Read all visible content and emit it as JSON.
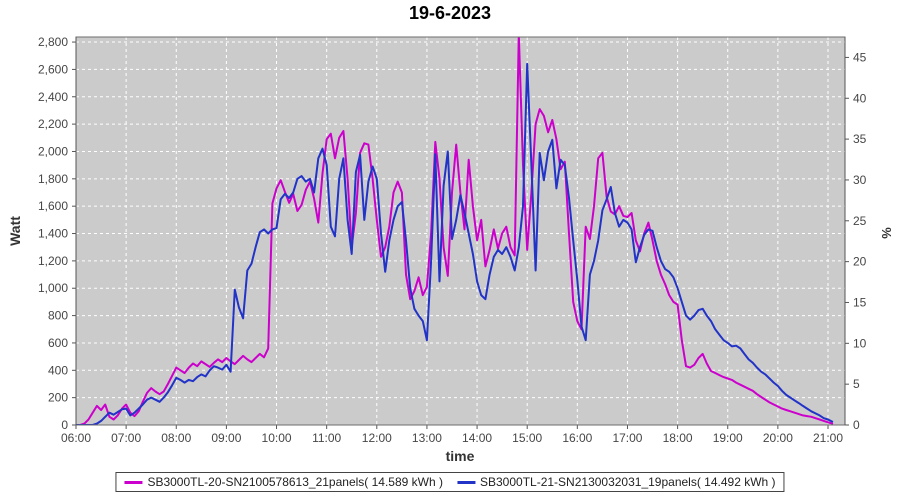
{
  "title": "19-6-2023",
  "chart_data": {
    "type": "line",
    "title": "19-6-2023",
    "plot_bg": "#cbcbcb",
    "grid_color": "#ffffff",
    "legend_position": "bottom-center",
    "x_axis": {
      "label": "time",
      "tick_hours": [
        6,
        7,
        8,
        9,
        10,
        11,
        12,
        13,
        14,
        15,
        16,
        17,
        18,
        19,
        20,
        21
      ],
      "tick_labels": [
        "06:00",
        "07:00",
        "08:00",
        "09:00",
        "10:00",
        "11:00",
        "12:00",
        "13:00",
        "14:00",
        "15:00",
        "16:00",
        "17:00",
        "18:00",
        "19:00",
        "20:00",
        "21:00"
      ]
    },
    "y_axis_left": {
      "label": "Watt",
      "ticks": [
        0,
        200,
        400,
        600,
        800,
        1000,
        1200,
        1400,
        1600,
        1800,
        2000,
        2200,
        2400,
        2600,
        2800
      ],
      "tick_labels": [
        "0",
        "200",
        "400",
        "600",
        "800",
        "1,000",
        "1,200",
        "1,400",
        "1,600",
        "1,800",
        "2,000",
        "2,200",
        "2,400",
        "2,600",
        "2,800"
      ],
      "range": [
        0,
        2837
      ]
    },
    "y_axis_right": {
      "label": "%",
      "ticks": [
        0,
        5,
        10,
        15,
        20,
        25,
        30,
        35,
        40,
        45
      ],
      "tick_labels": [
        "0",
        "5",
        "10",
        "15",
        "20",
        "25",
        "30",
        "35",
        "40",
        "45"
      ],
      "range": [
        0,
        47.5
      ]
    },
    "x_start_hour": 6,
    "x_step_minutes": 5,
    "series": [
      {
        "name": "SB3000TL-20-SN2100578613_21panels( 14.589 kWh )",
        "color": "#cc00cc",
        "unit": "Watt",
        "total_kwh": "14.589",
        "values": [
          0,
          0,
          10,
          40,
          90,
          140,
          110,
          150,
          60,
          40,
          70,
          120,
          150,
          90,
          65,
          100,
          170,
          235,
          270,
          245,
          225,
          245,
          300,
          360,
          420,
          400,
          380,
          420,
          450,
          430,
          465,
          445,
          425,
          455,
          480,
          460,
          490,
          465,
          445,
          475,
          505,
          480,
          460,
          490,
          520,
          495,
          560,
          1620,
          1730,
          1790,
          1705,
          1625,
          1690,
          1565,
          1610,
          1720,
          1780,
          1655,
          1480,
          1840,
          2090,
          2130,
          1950,
          2100,
          2150,
          1800,
          1300,
          1550,
          1990,
          2060,
          2050,
          1800,
          1500,
          1230,
          1300,
          1450,
          1700,
          1780,
          1700,
          1100,
          920,
          980,
          1080,
          950,
          1010,
          1400,
          2070,
          1800,
          1300,
          1090,
          1700,
          2050,
          1700,
          1430,
          1940,
          1600,
          1350,
          1500,
          1160,
          1280,
          1430,
          1290,
          1400,
          1450,
          1300,
          1240,
          2860,
          1900,
          1280,
          1700,
          2200,
          2310,
          2260,
          2140,
          2230,
          2090,
          1870,
          1925,
          1400,
          900,
          760,
          700,
          1450,
          1360,
          1600,
          1950,
          1990,
          1670,
          1560,
          1540,
          1600,
          1530,
          1520,
          1550,
          1350,
          1270,
          1400,
          1480,
          1350,
          1200,
          1100,
          1030,
          950,
          900,
          880,
          620,
          430,
          420,
          440,
          490,
          520,
          450,
          395,
          380,
          365,
          350,
          340,
          330,
          310,
          295,
          280,
          265,
          250,
          225,
          205,
          185,
          165,
          150,
          135,
          120,
          110,
          100,
          90,
          80,
          70,
          65,
          60,
          50,
          40,
          30,
          20,
          10
        ]
      },
      {
        "name": "SB3000TL-21-SN2130032031_19panels( 14.492 kWh )",
        "color": "#2233c8",
        "unit": "Watt",
        "total_kwh": "14.492",
        "values": [
          0,
          0,
          0,
          0,
          0,
          10,
          30,
          60,
          90,
          75,
          95,
          115,
          120,
          70,
          90,
          120,
          150,
          185,
          200,
          185,
          170,
          200,
          240,
          290,
          345,
          330,
          310,
          330,
          320,
          350,
          370,
          355,
          400,
          430,
          420,
          405,
          440,
          390,
          990,
          860,
          780,
          1130,
          1180,
          1300,
          1410,
          1430,
          1400,
          1430,
          1440,
          1650,
          1690,
          1660,
          1700,
          1800,
          1820,
          1780,
          1800,
          1700,
          1950,
          2020,
          1900,
          1450,
          1380,
          1800,
          1950,
          1500,
          1250,
          1850,
          1975,
          1500,
          1780,
          1890,
          1800,
          1400,
          1120,
          1350,
          1500,
          1600,
          1630,
          1350,
          1000,
          850,
          800,
          760,
          620,
          1200,
          1980,
          1050,
          1750,
          2000,
          1360,
          1500,
          1680,
          1550,
          1400,
          1250,
          1050,
          950,
          920,
          1100,
          1230,
          1280,
          1250,
          1300,
          1230,
          1130,
          1300,
          1600,
          2640,
          1900,
          1130,
          1990,
          1790,
          2000,
          2085,
          1730,
          1940,
          1900,
          1660,
          1350,
          1060,
          720,
          620,
          1100,
          1200,
          1350,
          1570,
          1650,
          1740,
          1550,
          1450,
          1500,
          1480,
          1430,
          1190,
          1300,
          1390,
          1430,
          1420,
          1300,
          1200,
          1140,
          1120,
          1080,
          1000,
          900,
          800,
          770,
          800,
          840,
          850,
          800,
          760,
          700,
          660,
          620,
          600,
          575,
          580,
          560,
          520,
          480,
          455,
          420,
          390,
          370,
          340,
          310,
          285,
          250,
          220,
          200,
          180,
          160,
          140,
          120,
          100,
          85,
          70,
          50,
          40,
          25
        ]
      }
    ]
  }
}
